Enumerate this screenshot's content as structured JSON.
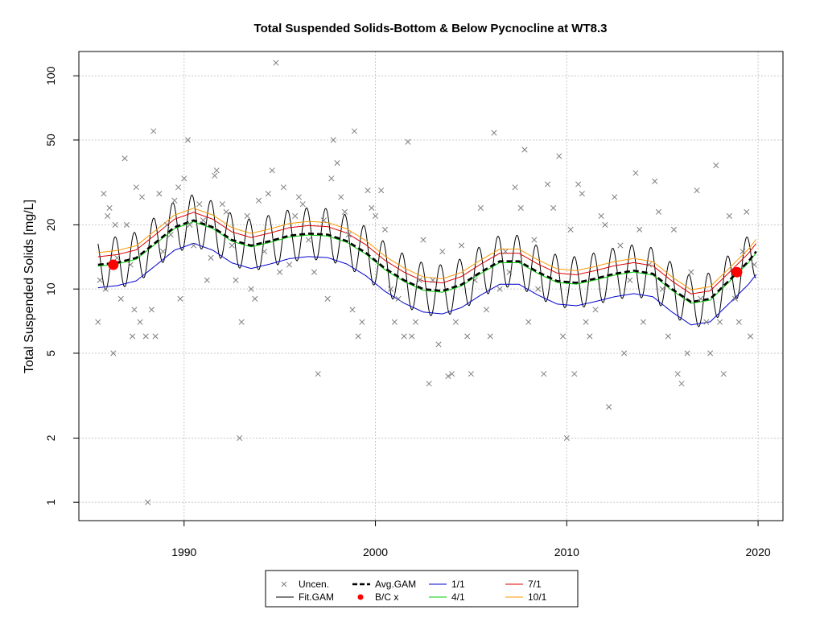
{
  "chart_data": {
    "type": "scatter",
    "title": "Total Suspended Solids-Bottom & Below Pycnocline at WT8.3",
    "xlabel": "",
    "ylabel": "Total Suspended Solids [mg/L]",
    "y_scale": "log",
    "xlim": [
      1984.5,
      2021.3
    ],
    "ylim": [
      0.82,
      130
    ],
    "x_ticks": [
      1990,
      2000,
      2010,
      2020
    ],
    "y_ticks": [
      1,
      2,
      5,
      10,
      20,
      50,
      100
    ],
    "grid": true,
    "legend_placement": "bottom-center",
    "colors": {
      "uncen": "#7f7f7f",
      "fit_gam": "#000000",
      "avg_gam": "#000000",
      "bc": "#ff0000",
      "p1_1": "#0000cc",
      "p4_1": "#00cc00",
      "p7_1": "#dd0000",
      "p10_1": "#ff9900",
      "grid": "#c8c8c8"
    },
    "legend": [
      {
        "label": "Uncen.",
        "key": "uncen",
        "symbol": "x"
      },
      {
        "label": "Fit.GAM",
        "key": "fit_gam",
        "symbol": "line"
      },
      {
        "label": "Avg.GAM",
        "key": "avg_gam",
        "symbol": "dash"
      },
      {
        "label": "B/C x",
        "key": "bc",
        "symbol": "dot"
      },
      {
        "label": "1/1",
        "key": "p1_1",
        "symbol": "line"
      },
      {
        "label": "4/1",
        "key": "p4_1",
        "symbol": "line"
      },
      {
        "label": "7/1",
        "key": "p7_1",
        "symbol": "line"
      },
      {
        "label": "10/1",
        "key": "p10_1",
        "symbol": "line"
      }
    ],
    "observations": [
      [
        1985.5,
        7
      ],
      [
        1985.6,
        11
      ],
      [
        1985.8,
        28
      ],
      [
        1985.9,
        10
      ],
      [
        1986.0,
        22
      ],
      [
        1986.1,
        24
      ],
      [
        1986.3,
        5
      ],
      [
        1986.4,
        20
      ],
      [
        1986.5,
        14
      ],
      [
        1986.7,
        9
      ],
      [
        1986.9,
        41
      ],
      [
        1987.0,
        20
      ],
      [
        1987.2,
        13
      ],
      [
        1987.3,
        6
      ],
      [
        1987.4,
        8
      ],
      [
        1987.5,
        30
      ],
      [
        1987.7,
        7
      ],
      [
        1987.8,
        27
      ],
      [
        1988.0,
        6
      ],
      [
        1988.1,
        1
      ],
      [
        1988.3,
        8
      ],
      [
        1988.4,
        55
      ],
      [
        1988.5,
        6
      ],
      [
        1988.7,
        28
      ],
      [
        1988.9,
        15
      ],
      [
        1989.1,
        20
      ],
      [
        1989.3,
        18
      ],
      [
        1989.5,
        26
      ],
      [
        1989.7,
        30
      ],
      [
        1989.8,
        9
      ],
      [
        1990.0,
        33
      ],
      [
        1990.2,
        50
      ],
      [
        1990.3,
        20
      ],
      [
        1990.5,
        16
      ],
      [
        1990.8,
        25
      ],
      [
        1991.0,
        21
      ],
      [
        1991.2,
        11
      ],
      [
        1991.4,
        14
      ],
      [
        1991.6,
        34
      ],
      [
        1991.7,
        36
      ],
      [
        1992.0,
        25
      ],
      [
        1992.2,
        23
      ],
      [
        1992.5,
        16
      ],
      [
        1992.7,
        11
      ],
      [
        1992.9,
        2
      ],
      [
        1993.0,
        7
      ],
      [
        1993.3,
        22
      ],
      [
        1993.5,
        10
      ],
      [
        1993.7,
        9
      ],
      [
        1993.9,
        26
      ],
      [
        1994.2,
        15
      ],
      [
        1994.4,
        28
      ],
      [
        1994.6,
        36
      ],
      [
        1994.8,
        115
      ],
      [
        1995.0,
        12
      ],
      [
        1995.2,
        30
      ],
      [
        1995.5,
        13
      ],
      [
        1995.8,
        22
      ],
      [
        1996.0,
        27
      ],
      [
        1996.2,
        25
      ],
      [
        1996.5,
        17
      ],
      [
        1996.8,
        12
      ],
      [
        1997.0,
        4
      ],
      [
        1997.3,
        21
      ],
      [
        1997.5,
        9
      ],
      [
        1997.7,
        33
      ],
      [
        1997.8,
        50
      ],
      [
        1998.0,
        39
      ],
      [
        1998.2,
        27
      ],
      [
        1998.4,
        23
      ],
      [
        1998.6,
        18
      ],
      [
        1998.8,
        8
      ],
      [
        1998.9,
        55
      ],
      [
        1999.1,
        6
      ],
      [
        1999.3,
        7
      ],
      [
        1999.6,
        29
      ],
      [
        1999.8,
        24
      ],
      [
        2000.0,
        22
      ],
      [
        2000.3,
        29
      ],
      [
        2000.5,
        19
      ],
      [
        2000.8,
        10
      ],
      [
        2001.0,
        7
      ],
      [
        2001.2,
        9
      ],
      [
        2001.5,
        6
      ],
      [
        2001.7,
        49
      ],
      [
        2001.9,
        6
      ],
      [
        2002.1,
        7
      ],
      [
        2002.3,
        11
      ],
      [
        2002.5,
        17
      ],
      [
        2002.8,
        3.6
      ],
      [
        2003.0,
        11
      ],
      [
        2003.3,
        5.5
      ],
      [
        2003.5,
        15
      ],
      [
        2003.8,
        3.9
      ],
      [
        2004.0,
        4
      ],
      [
        2004.2,
        7
      ],
      [
        2004.5,
        16
      ],
      [
        2004.8,
        6
      ],
      [
        2005.0,
        4
      ],
      [
        2005.2,
        11
      ],
      [
        2005.5,
        24
      ],
      [
        2005.8,
        8
      ],
      [
        2006.0,
        6
      ],
      [
        2006.2,
        54
      ],
      [
        2006.5,
        10
      ],
      [
        2006.8,
        15
      ],
      [
        2007.0,
        12
      ],
      [
        2007.3,
        30
      ],
      [
        2007.6,
        24
      ],
      [
        2007.8,
        45
      ],
      [
        2008.0,
        7
      ],
      [
        2008.3,
        17
      ],
      [
        2008.5,
        10
      ],
      [
        2008.8,
        4
      ],
      [
        2009.0,
        31
      ],
      [
        2009.3,
        24
      ],
      [
        2009.6,
        42
      ],
      [
        2009.8,
        6
      ],
      [
        2010.0,
        2
      ],
      [
        2010.2,
        19
      ],
      [
        2010.4,
        4
      ],
      [
        2010.6,
        31
      ],
      [
        2010.8,
        28
      ],
      [
        2011.0,
        7
      ],
      [
        2011.2,
        6
      ],
      [
        2011.5,
        8
      ],
      [
        2011.8,
        22
      ],
      [
        2012.0,
        20
      ],
      [
        2012.2,
        2.8
      ],
      [
        2012.5,
        27
      ],
      [
        2012.8,
        16
      ],
      [
        2013.0,
        5
      ],
      [
        2013.3,
        11
      ],
      [
        2013.6,
        35
      ],
      [
        2013.8,
        19
      ],
      [
        2014.0,
        7
      ],
      [
        2014.3,
        13
      ],
      [
        2014.6,
        32
      ],
      [
        2014.8,
        23
      ],
      [
        2015.0,
        10
      ],
      [
        2015.3,
        6
      ],
      [
        2015.6,
        19
      ],
      [
        2015.8,
        4
      ],
      [
        2016.0,
        3.6
      ],
      [
        2016.3,
        5
      ],
      [
        2016.5,
        12
      ],
      [
        2016.8,
        29
      ],
      [
        2017.0,
        9
      ],
      [
        2017.3,
        7
      ],
      [
        2017.5,
        5
      ],
      [
        2017.8,
        38
      ],
      [
        2018.0,
        7
      ],
      [
        2018.2,
        4
      ],
      [
        2018.5,
        22
      ],
      [
        2018.8,
        9
      ],
      [
        2019.0,
        7
      ],
      [
        2019.2,
        15
      ],
      [
        2019.4,
        23
      ],
      [
        2019.6,
        6
      ],
      [
        2019.8,
        13
      ]
    ],
    "avg_gam": [
      [
        1985.5,
        13.0
      ],
      [
        1986.5,
        13.3
      ],
      [
        1987.5,
        14.0
      ],
      [
        1988.5,
        16.5
      ],
      [
        1989.5,
        19.5
      ],
      [
        1990.5,
        21.0
      ],
      [
        1991.5,
        19.5
      ],
      [
        1992.5,
        17.0
      ],
      [
        1993.5,
        16.0
      ],
      [
        1994.5,
        16.8
      ],
      [
        1995.5,
        17.8
      ],
      [
        1996.5,
        18.2
      ],
      [
        1997.5,
        18.0
      ],
      [
        1998.5,
        16.8
      ],
      [
        1999.5,
        14.8
      ],
      [
        2000.5,
        12.5
      ],
      [
        2001.5,
        11.0
      ],
      [
        2002.5,
        10.0
      ],
      [
        2003.5,
        9.8
      ],
      [
        2004.5,
        10.5
      ],
      [
        2005.5,
        12.0
      ],
      [
        2006.5,
        13.5
      ],
      [
        2007.5,
        13.5
      ],
      [
        2008.5,
        12.0
      ],
      [
        2009.5,
        10.9
      ],
      [
        2010.5,
        10.7
      ],
      [
        2011.5,
        11.2
      ],
      [
        2012.5,
        11.8
      ],
      [
        2013.5,
        12.2
      ],
      [
        2014.5,
        11.8
      ],
      [
        2015.5,
        10.0
      ],
      [
        2016.5,
        8.7
      ],
      [
        2017.5,
        9.0
      ],
      [
        2018.5,
        11.0
      ],
      [
        2019.5,
        13.5
      ],
      [
        2019.9,
        15.0
      ]
    ],
    "fit_gam_amplitude": 0.28,
    "fit_gam_range": [
      1985.5,
      2019.9
    ],
    "percentile_ratios": {
      "p1_1": 0.78,
      "p4_1": 0.985,
      "p7_1": 1.09,
      "p10_1": 1.14
    },
    "percentile_keys": [
      "p1_1",
      "p4_1",
      "p7_1",
      "p10_1"
    ],
    "bc_points": [
      [
        1986.3,
        13.0
      ],
      [
        2018.9,
        12.0
      ]
    ]
  }
}
